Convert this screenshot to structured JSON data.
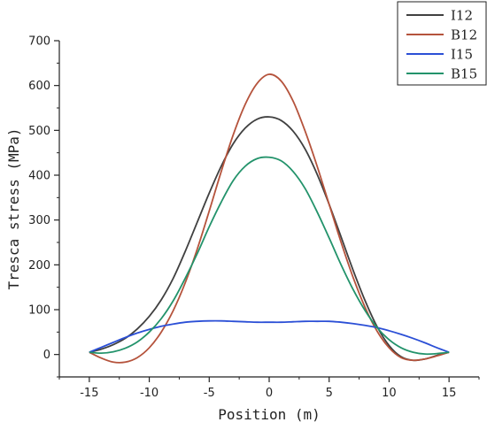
{
  "chart_data": {
    "type": "line",
    "title": "",
    "xlabel": "Position (m)",
    "ylabel": "Tresca stress (MPa)",
    "xlim": [
      -17.5,
      17.5
    ],
    "ylim": [
      -50,
      700
    ],
    "xticks": [
      -15,
      -10,
      -5,
      0,
      5,
      10,
      15
    ],
    "yticks": [
      0,
      100,
      200,
      300,
      400,
      500,
      600,
      700
    ],
    "xtick_labels": [
      "-15",
      "-10",
      "-5",
      "0",
      "5",
      "10",
      "15"
    ],
    "ytick_labels": [
      "0",
      "100",
      "200",
      "300",
      "400",
      "500",
      "600",
      "700"
    ],
    "grid": false,
    "legend_position": "top-right",
    "series": [
      {
        "name": "I12",
        "color": "#404040",
        "x": [
          -15,
          -14,
          -13,
          -12,
          -11,
          -10,
          -9,
          -8,
          -7,
          -6,
          -5,
          -4,
          -3,
          -2,
          -1,
          0,
          1,
          2,
          3,
          4,
          5,
          6,
          7,
          8,
          9,
          10,
          11,
          12,
          13,
          14,
          15
        ],
        "y": [
          5,
          12,
          22,
          36,
          57,
          85,
          122,
          170,
          230,
          295,
          360,
          420,
          470,
          505,
          525,
          530,
          522,
          498,
          458,
          402,
          335,
          262,
          188,
          120,
          62,
          20,
          -5,
          -13,
          -10,
          -2,
          5
        ]
      },
      {
        "name": "B12",
        "color": "#b5533c",
        "x": [
          -15,
          -14,
          -13,
          -12,
          -11,
          -10,
          -9,
          -8,
          -7,
          -6,
          -5,
          -4,
          -3,
          -2,
          -1,
          0,
          1,
          2,
          3,
          4,
          5,
          6,
          7,
          8,
          9,
          10,
          11,
          12,
          13,
          14,
          15
        ],
        "y": [
          5,
          -8,
          -17,
          -17,
          -7,
          15,
          50,
          98,
          160,
          235,
          320,
          408,
          490,
          558,
          605,
          625,
          610,
          565,
          498,
          420,
          335,
          250,
          172,
          105,
          52,
          15,
          -7,
          -13,
          -10,
          -3,
          5
        ]
      },
      {
        "name": "I15",
        "color": "#2b4fd6",
        "x": [
          -15,
          -14,
          -13,
          -12,
          -11,
          -10,
          -9,
          -8,
          -7,
          -6,
          -5,
          -4,
          -3,
          -2,
          -1,
          0,
          1,
          2,
          3,
          4,
          5,
          6,
          7,
          8,
          9,
          10,
          11,
          12,
          13,
          14,
          15
        ],
        "y": [
          5,
          16,
          27,
          38,
          48,
          56,
          63,
          68,
          72,
          74,
          75,
          75,
          74,
          73,
          72,
          72,
          72,
          73,
          74,
          74,
          74,
          72,
          69,
          65,
          60,
          53,
          45,
          36,
          26,
          15,
          5
        ]
      },
      {
        "name": "B15",
        "color": "#23936b",
        "x": [
          -15,
          -14,
          -13,
          -12,
          -11,
          -10,
          -9,
          -8,
          -7,
          -6,
          -5,
          -4,
          -3,
          -2,
          -1,
          0,
          1,
          2,
          3,
          4,
          5,
          6,
          7,
          8,
          9,
          10,
          11,
          12,
          13,
          14,
          15
        ],
        "y": [
          5,
          3,
          6,
          14,
          28,
          50,
          80,
          120,
          170,
          225,
          285,
          340,
          388,
          420,
          437,
          440,
          432,
          408,
          370,
          318,
          260,
          200,
          145,
          98,
          60,
          33,
          15,
          5,
          1,
          2,
          5
        ]
      }
    ]
  }
}
